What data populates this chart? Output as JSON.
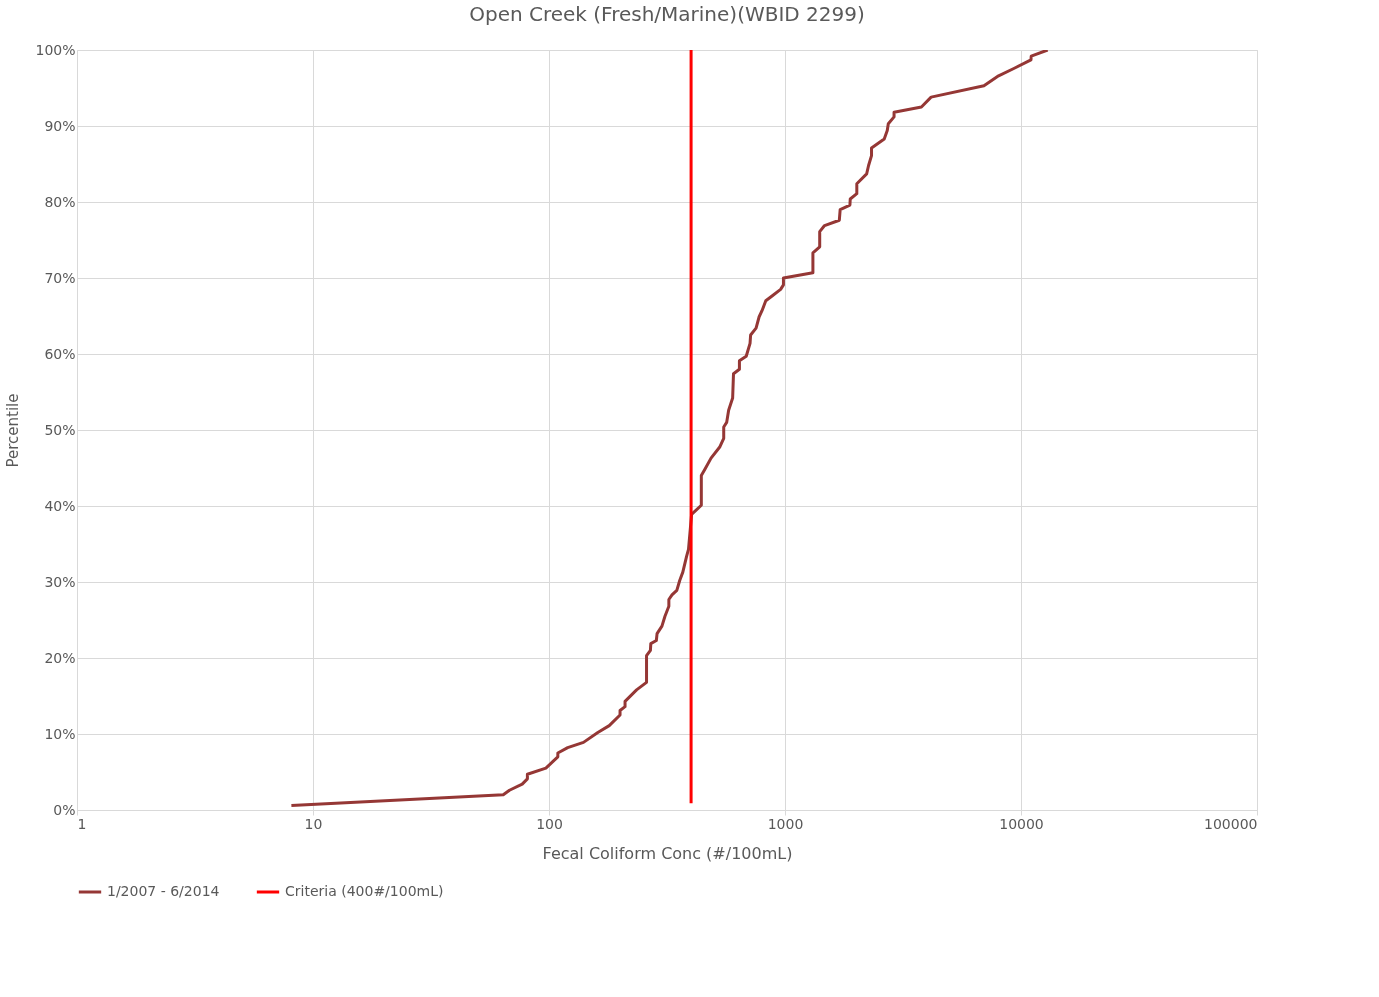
{
  "chart_data": {
    "type": "line",
    "title": "Open Creek (Fresh/Marine)(WBID 2299)",
    "xlabel": "Fecal Coliform Conc (#/100mL)",
    "ylabel": "Percentile",
    "log": "x",
    "xlim": [
      1,
      100000
    ],
    "xticks": [
      1,
      10,
      100,
      1000,
      10000,
      100000
    ],
    "ylim": [
      0,
      100
    ],
    "yticks": [
      {
        "value": 0,
        "label": "0%"
      },
      {
        "value": 10,
        "label": "10%"
      },
      {
        "value": 20,
        "label": "20%"
      },
      {
        "value": 30,
        "label": "30%"
      },
      {
        "value": 40,
        "label": "40%"
      },
      {
        "value": 50,
        "label": "50%"
      },
      {
        "value": 60,
        "label": "60%"
      },
      {
        "value": 70,
        "label": "70%"
      },
      {
        "value": 80,
        "label": "80%"
      },
      {
        "value": 90,
        "label": "90%"
      },
      {
        "value": 100,
        "label": "100%"
      }
    ],
    "grid": true,
    "legend": "bottom",
    "marker": "none",
    "line_style": "solid",
    "series": [
      {
        "name": "1/2007 - 6/2014",
        "color": "#953735",
        "x": [
          8.1,
          64,
          68,
          77,
          81,
          81,
          97,
          104,
          109,
          109,
          120,
          140,
          161,
          180,
          200,
          200,
          210,
          210,
          235,
          259,
          259,
          269,
          270,
          285,
          287,
          301,
          310,
          322,
          322,
          332,
          348,
          358,
          369,
          383,
          390,
          402,
          442,
          442,
          459,
          486,
          530,
          550,
          550,
          566,
          577,
          600,
          605,
          641,
          641,
          685,
          711,
          715,
          754,
          777,
          799,
          829,
          887,
          958,
          985,
          985,
          1313,
          1313,
          1403,
          1403,
          1471,
          1699,
          1713,
          1884,
          1890,
          2015,
          2015,
          2218,
          2260,
          2326,
          2326,
          2633,
          2712,
          2740,
          2898,
          2898,
          3785,
          4160,
          6966,
          8035,
          9370,
          11020,
          11050,
          12970
        ],
        "values": [
          0.6,
          2.0,
          2.6,
          3.4,
          4.1,
          4.7,
          5.5,
          6.4,
          7.0,
          7.5,
          8.2,
          8.9,
          10.2,
          11.1,
          12.5,
          13.1,
          13.6,
          14.3,
          15.8,
          16.8,
          20.3,
          21.0,
          21.9,
          22.3,
          23.2,
          24.2,
          25.5,
          26.8,
          27.7,
          28.3,
          28.9,
          30.2,
          31.3,
          33.4,
          34.3,
          38.9,
          40.1,
          44.0,
          44.9,
          46.3,
          47.8,
          48.9,
          50.4,
          51.0,
          52.6,
          54.2,
          57.4,
          58.0,
          59.1,
          59.7,
          61.4,
          62.5,
          63.4,
          64.9,
          65.7,
          67.0,
          67.7,
          68.5,
          69.1,
          70.0,
          70.7,
          73.3,
          74.1,
          76.1,
          76.9,
          77.6,
          79.0,
          79.6,
          80.4,
          81.1,
          82.4,
          83.7,
          84.8,
          86.1,
          87.1,
          88.3,
          89.4,
          90.3,
          91.2,
          91.8,
          92.5,
          93.8,
          95.3,
          96.6,
          97.6,
          98.7,
          99.2,
          100
        ]
      },
      {
        "name": "Criteria (400#/100mL)",
        "color": "#ff0000",
        "x": [
          400,
          400
        ],
        "values": [
          0.9,
          100
        ]
      }
    ]
  }
}
